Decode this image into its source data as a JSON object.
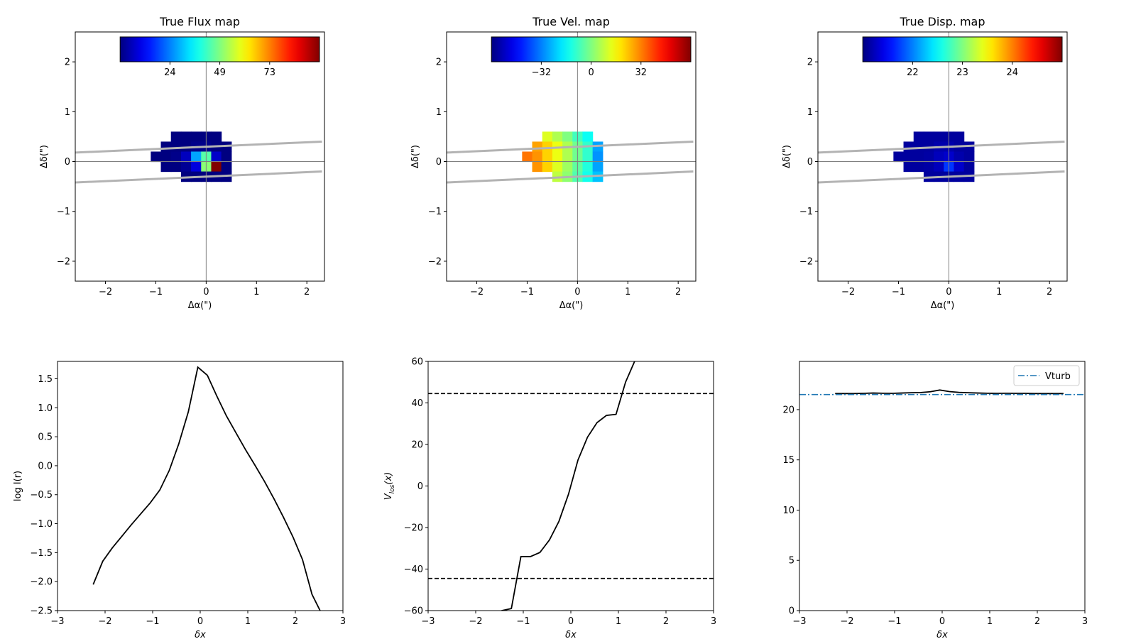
{
  "chart_data": [
    {
      "type": "heatmap",
      "title": "True Flux map",
      "xlabel": "Δα(\")",
      "ylabel": "Δδ(\")",
      "xlim": [
        -2.6,
        2.35
      ],
      "ylim": [
        -2.4,
        2.6
      ],
      "xticks": [
        -2,
        -1,
        0,
        1,
        2
      ],
      "yticks": [
        -2,
        -1,
        0,
        1,
        2
      ],
      "colormap": "jet",
      "colorbar": {
        "ticks": [
          24,
          49,
          73
        ],
        "tick_positions": [
          0.25,
          0.5,
          0.75
        ],
        "min": 0,
        "max": 98,
        "placement": "top"
      },
      "crosshair": [
        0,
        0
      ],
      "pixel_size": 0.2,
      "slit": [
        {
          "x": [
            -2.6,
            2.3
          ],
          "y": [
            0.18,
            0.4
          ]
        },
        {
          "x": [
            -2.6,
            2.3
          ],
          "y": [
            -0.42,
            -0.2
          ]
        }
      ],
      "cells": [
        [
          -0.6,
          0.5,
          0
        ],
        [
          -0.4,
          0.5,
          0
        ],
        [
          -0.2,
          0.5,
          0
        ],
        [
          0,
          0.5,
          0
        ],
        [
          0.2,
          0.5,
          0
        ],
        [
          -0.8,
          0.3,
          0
        ],
        [
          -0.6,
          0.3,
          0
        ],
        [
          -0.4,
          0.3,
          0
        ],
        [
          -0.2,
          0.3,
          1
        ],
        [
          0,
          0.3,
          1
        ],
        [
          0.2,
          0.3,
          0
        ],
        [
          0.4,
          0.3,
          0
        ],
        [
          -1,
          0.1,
          0
        ],
        [
          -0.8,
          0.1,
          0
        ],
        [
          -0.6,
          0.1,
          1
        ],
        [
          -0.4,
          0.1,
          6
        ],
        [
          -0.2,
          0.1,
          28
        ],
        [
          0,
          0.1,
          45
        ],
        [
          0.2,
          0.1,
          7
        ],
        [
          0.4,
          0.1,
          0
        ],
        [
          -0.8,
          -0.1,
          0
        ],
        [
          -0.6,
          -0.1,
          0
        ],
        [
          -0.4,
          -0.1,
          2
        ],
        [
          -0.2,
          -0.1,
          9
        ],
        [
          0,
          -0.1,
          50
        ],
        [
          0.2,
          -0.1,
          98
        ],
        [
          0.4,
          -0.1,
          0
        ],
        [
          -0.4,
          -0.3,
          0
        ],
        [
          -0.2,
          -0.3,
          0
        ],
        [
          0,
          -0.3,
          0
        ],
        [
          0.2,
          -0.3,
          0
        ],
        [
          0.4,
          -0.3,
          0
        ]
      ]
    },
    {
      "type": "heatmap",
      "title": "True Vel. map",
      "xlabel": "Δα(\")",
      "ylabel": "Δδ(\")",
      "xlim": [
        -2.6,
        2.35
      ],
      "ylim": [
        -2.4,
        2.6
      ],
      "xticks": [
        -2,
        -1,
        0,
        1,
        2
      ],
      "yticks": [
        -2,
        -1,
        0,
        1,
        2
      ],
      "colormap": "jet",
      "colorbar": {
        "ticks": [
          -32,
          0,
          32
        ],
        "tick_positions": [
          0.25,
          0.5,
          0.75
        ],
        "min": -65,
        "max": 65,
        "placement": "top"
      },
      "crosshair": [
        0,
        0
      ],
      "pixel_size": 0.2,
      "slit": [
        {
          "x": [
            -2.6,
            2.3
          ],
          "y": [
            0.18,
            0.4
          ]
        },
        {
          "x": [
            -2.6,
            2.3
          ],
          "y": [
            -0.42,
            -0.2
          ]
        }
      ],
      "cells": [
        [
          -0.6,
          0.5,
          12
        ],
        [
          -0.4,
          0.5,
          6
        ],
        [
          -0.2,
          0.5,
          0
        ],
        [
          0,
          0.5,
          -8
        ],
        [
          0.2,
          0.5,
          -15
        ],
        [
          -0.8,
          0.3,
          28
        ],
        [
          -0.6,
          0.3,
          22
        ],
        [
          -0.4,
          0.3,
          14
        ],
        [
          -0.2,
          0.3,
          6
        ],
        [
          0,
          0.3,
          -2
        ],
        [
          0.2,
          0.3,
          -10
        ],
        [
          0.4,
          0.3,
          -28
        ],
        [
          -1,
          0.1,
          34
        ],
        [
          -0.8,
          0.1,
          30
        ],
        [
          -0.6,
          0.1,
          22
        ],
        [
          -0.4,
          0.1,
          14
        ],
        [
          -0.2,
          0.1,
          6
        ],
        [
          0,
          0.1,
          -2
        ],
        [
          0.2,
          0.1,
          -10
        ],
        [
          0.4,
          0.1,
          -30
        ],
        [
          -0.8,
          -0.1,
          30
        ],
        [
          -0.6,
          -0.1,
          22
        ],
        [
          -0.4,
          -0.1,
          12
        ],
        [
          -0.2,
          -0.1,
          4
        ],
        [
          0,
          -0.1,
          -4
        ],
        [
          0.2,
          -0.1,
          -12
        ],
        [
          0.4,
          -0.1,
          -28
        ],
        [
          -0.4,
          -0.3,
          8
        ],
        [
          -0.2,
          -0.3,
          2
        ],
        [
          0,
          -0.3,
          -6
        ],
        [
          0.2,
          -0.3,
          -14
        ],
        [
          0.4,
          -0.3,
          -24
        ]
      ]
    },
    {
      "type": "heatmap",
      "title": "True Disp. map",
      "xlabel": "Δα(\")",
      "ylabel": "Δδ(\")",
      "xlim": [
        -2.6,
        2.35
      ],
      "ylim": [
        -2.4,
        2.6
      ],
      "xticks": [
        -2,
        -1,
        0,
        1,
        2
      ],
      "yticks": [
        -2,
        -1,
        0,
        1,
        2
      ],
      "colormap": "jet",
      "colorbar": {
        "ticks": [
          22,
          23,
          24
        ],
        "tick_positions": [
          0.25,
          0.5,
          0.75
        ],
        "min": 21.5,
        "max": 24.9,
        "placement": "top"
      },
      "crosshair": [
        0,
        0
      ],
      "pixel_size": 0.2,
      "slit": [
        {
          "x": [
            -2.6,
            2.3
          ],
          "y": [
            0.18,
            0.4
          ]
        },
        {
          "x": [
            -2.6,
            2.3
          ],
          "y": [
            -0.42,
            -0.2
          ]
        }
      ],
      "cells": [
        [
          -0.6,
          0.5,
          21.6
        ],
        [
          -0.4,
          0.5,
          21.6
        ],
        [
          -0.2,
          0.5,
          21.6
        ],
        [
          0,
          0.5,
          21.6
        ],
        [
          0.2,
          0.5,
          21.6
        ],
        [
          -0.8,
          0.3,
          21.6
        ],
        [
          -0.6,
          0.3,
          21.6
        ],
        [
          -0.4,
          0.3,
          21.6
        ],
        [
          -0.2,
          0.3,
          21.65
        ],
        [
          0,
          0.3,
          21.65
        ],
        [
          0.2,
          0.3,
          21.6
        ],
        [
          0.4,
          0.3,
          21.6
        ],
        [
          -1,
          0.1,
          21.6
        ],
        [
          -0.8,
          0.1,
          21.6
        ],
        [
          -0.6,
          0.1,
          21.6
        ],
        [
          -0.4,
          0.1,
          21.62
        ],
        [
          -0.2,
          0.1,
          21.7
        ],
        [
          0,
          0.1,
          21.75
        ],
        [
          0.2,
          0.1,
          21.65
        ],
        [
          0.4,
          0.1,
          21.6
        ],
        [
          -0.8,
          -0.1,
          21.6
        ],
        [
          -0.6,
          -0.1,
          21.6
        ],
        [
          -0.4,
          -0.1,
          21.62
        ],
        [
          -0.2,
          -0.1,
          21.7
        ],
        [
          0,
          -0.1,
          22.1
        ],
        [
          0.2,
          -0.1,
          21.75
        ],
        [
          0.4,
          -0.1,
          21.6
        ],
        [
          -0.4,
          -0.3,
          21.6
        ],
        [
          -0.2,
          -0.3,
          21.6
        ],
        [
          0,
          -0.3,
          21.6
        ],
        [
          0.2,
          -0.3,
          21.6
        ],
        [
          0.4,
          -0.3,
          21.6
        ]
      ]
    },
    {
      "type": "line",
      "title": "",
      "xlabel": "δx",
      "ylabel": "log I(r)",
      "xlim": [
        -3,
        3
      ],
      "ylim": [
        -2.5,
        1.8
      ],
      "xticks": [
        -3,
        -2,
        -1,
        0,
        1,
        2,
        3
      ],
      "yticks": [
        -2.5,
        -2.0,
        -1.5,
        -1.0,
        -0.5,
        0.0,
        0.5,
        1.0,
        1.5
      ],
      "tick_decimals": 1,
      "series": [
        {
          "color": "#000000",
          "style": "solid",
          "x": [
            -2.25,
            -2.05,
            -1.85,
            -1.65,
            -1.45,
            -1.25,
            -1.05,
            -0.85,
            -0.65,
            -0.45,
            -0.25,
            -0.05,
            0.15,
            0.35,
            0.55,
            0.75,
            0.95,
            1.15,
            1.35,
            1.55,
            1.75,
            1.95,
            2.15,
            2.35,
            2.55
          ],
          "y": [
            -2.05,
            -1.65,
            -1.42,
            -1.22,
            -1.02,
            -0.83,
            -0.64,
            -0.42,
            -0.08,
            0.38,
            0.93,
            1.7,
            1.56,
            1.2,
            0.86,
            0.57,
            0.28,
            0.01,
            -0.27,
            -0.57,
            -0.89,
            -1.23,
            -1.62,
            -2.22,
            -2.55
          ]
        }
      ]
    },
    {
      "type": "line",
      "title": "",
      "xlabel": "δx",
      "ylabel": "V_los(x)",
      "ylabel_main": "V",
      "ylabel_sub": "los",
      "ylabel_suffix": "(x)",
      "xlim": [
        -3,
        3
      ],
      "ylim": [
        -60,
        60
      ],
      "xticks": [
        -3,
        -2,
        -1,
        0,
        1,
        2,
        3
      ],
      "yticks": [
        -60,
        -40,
        -20,
        0,
        20,
        40,
        60
      ],
      "tick_decimals": 0,
      "series": [
        {
          "color": "#000000",
          "style": "solid",
          "x": [
            -2.25,
            -2.05,
            -1.85,
            -1.65,
            -1.45,
            -1.25,
            -1.05,
            -0.85,
            -0.65,
            -0.45,
            -0.25,
            -0.05,
            0.15,
            0.35,
            0.55,
            0.75,
            0.95,
            1.15,
            1.35,
            1.55
          ],
          "y": [
            -66,
            -64,
            -63,
            -62,
            -60,
            -59,
            -34,
            -34,
            -32,
            -26,
            -17,
            -4,
            12.5,
            23.5,
            30.5,
            34,
            34.5,
            50,
            60.5,
            70
          ]
        },
        {
          "color": "#000000",
          "style": "dashed",
          "x": [
            -3,
            3
          ],
          "y": [
            44.5,
            44.5
          ]
        },
        {
          "color": "#000000",
          "style": "dashed",
          "x": [
            -3,
            3
          ],
          "y": [
            -44.5,
            -44.5
          ]
        }
      ]
    },
    {
      "type": "line",
      "title": "",
      "xlabel": "δx",
      "ylabel": "",
      "xlim": [
        -3,
        3
      ],
      "ylim": [
        0,
        24.8
      ],
      "xticks": [
        -3,
        -2,
        -1,
        0,
        1,
        2,
        3
      ],
      "yticks": [
        0,
        5,
        10,
        15,
        20
      ],
      "tick_decimals": 0,
      "legend": {
        "placement": "top-right",
        "entries": [
          {
            "name": "Vturb",
            "color": "#1f77b4",
            "style": "dashdot"
          }
        ]
      },
      "series": [
        {
          "color": "#000000",
          "style": "solid",
          "x": [
            -2.25,
            -2.05,
            -1.85,
            -1.65,
            -1.45,
            -1.25,
            -1.05,
            -0.85,
            -0.65,
            -0.45,
            -0.25,
            -0.05,
            0.15,
            0.35,
            0.55,
            0.75,
            0.95,
            1.15,
            1.35,
            1.55,
            1.75,
            1.95,
            2.15,
            2.35,
            2.55
          ],
          "y": [
            21.6,
            21.6,
            21.6,
            21.62,
            21.65,
            21.63,
            21.62,
            21.65,
            21.68,
            21.7,
            21.78,
            21.95,
            21.8,
            21.72,
            21.68,
            21.65,
            21.63,
            21.62,
            21.63,
            21.62,
            21.62,
            21.6,
            21.6,
            21.6,
            21.6
          ]
        },
        {
          "name": "Vturb",
          "color": "#1f77b4",
          "style": "dashdot",
          "x": [
            -3,
            3
          ],
          "y": [
            21.5,
            21.5
          ]
        }
      ]
    }
  ]
}
